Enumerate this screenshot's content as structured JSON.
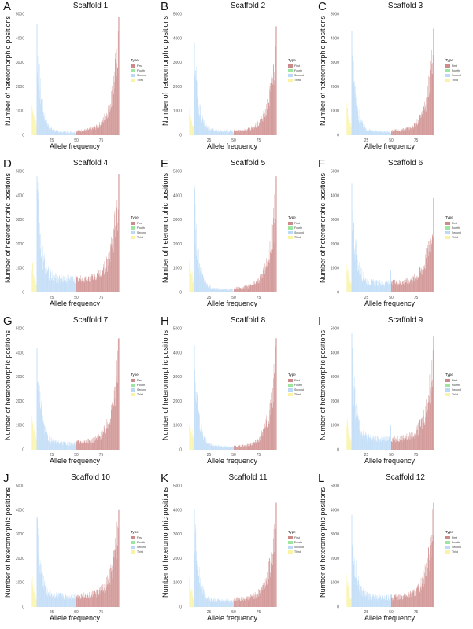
{
  "figure": {
    "ylabel": "Number of heteromorphic positions",
    "xlabel": "Allele frequency",
    "legend_title": "Type",
    "legend_items": [
      {
        "label": "First",
        "color": "#cd8a8a"
      },
      {
        "label": "Fourth",
        "color": "#9ce6a0"
      },
      {
        "label": "Second",
        "color": "#bcdaf7"
      },
      {
        "label": "Third",
        "color": "#f9f3a6"
      }
    ],
    "x_ticks": [
      25,
      50,
      75
    ],
    "y_ticks": [
      0,
      1000,
      2000,
      3000,
      4000,
      5000
    ]
  },
  "chart_data": [
    {
      "type": "bar",
      "panel": "A",
      "title": "Scaffold 1",
      "xlabel": "Allele frequency",
      "ylabel": "Number of heteromorphic positions",
      "ylim": [
        0,
        5000
      ],
      "xlim": [
        0,
        100
      ],
      "series": [
        {
          "name": "Third",
          "x_range": [
            5,
            10
          ],
          "values": [
            1200,
            900,
            700,
            550,
            450
          ]
        },
        {
          "name": "Second",
          "x_range": [
            10,
            50
          ],
          "peak": 4600,
          "mid_level": 150,
          "dip_at_50": 40
        },
        {
          "name": "First",
          "x_range": [
            50,
            93
          ],
          "mid_level": 200,
          "peak": 4900
        }
      ]
    },
    {
      "type": "bar",
      "panel": "B",
      "title": "Scaffold 2",
      "xlabel": "Allele frequency",
      "ylabel": "Number of heteromorphic positions",
      "ylim": [
        0,
        5000
      ],
      "xlim": [
        0,
        100
      ],
      "series": [
        {
          "name": "Third",
          "x_range": [
            5,
            10
          ],
          "values": [
            1000,
            700,
            500,
            350,
            300
          ]
        },
        {
          "name": "Second",
          "x_range": [
            10,
            50
          ],
          "peak": 3800,
          "mid_level": 200,
          "dip_at_50": 100
        },
        {
          "name": "First",
          "x_range": [
            50,
            93
          ],
          "mid_level": 200,
          "peak": 4500
        }
      ]
    },
    {
      "type": "bar",
      "panel": "C",
      "title": "Scaffold 3",
      "xlabel": "Allele frequency",
      "ylabel": "Number of heteromorphic positions",
      "ylim": [
        0,
        5000
      ],
      "xlim": [
        0,
        100
      ],
      "series": [
        {
          "name": "Third",
          "x_range": [
            5,
            10
          ],
          "values": [
            1100,
            800,
            600,
            400,
            300
          ]
        },
        {
          "name": "Second",
          "x_range": [
            10,
            50
          ],
          "peak": 4300,
          "mid_level": 180,
          "dip_at_50": 80
        },
        {
          "name": "First",
          "x_range": [
            50,
            93
          ],
          "mid_level": 200,
          "peak": 4400
        }
      ]
    },
    {
      "type": "bar",
      "panel": "D",
      "title": "Scaffold 4",
      "xlabel": "Allele frequency",
      "ylabel": "Number of heteromorphic positions",
      "ylim": [
        0,
        5000
      ],
      "xlim": [
        0,
        100
      ],
      "series": [
        {
          "name": "Third",
          "x_range": [
            5,
            10
          ],
          "values": [
            1100,
            800,
            600,
            400,
            300
          ]
        },
        {
          "name": "Second",
          "x_range": [
            10,
            50
          ],
          "peak": 4800,
          "mid_level": 650,
          "dip_at_50": 1700
        },
        {
          "name": "First",
          "x_range": [
            50,
            93
          ],
          "mid_level": 600,
          "peak": 4900
        }
      ]
    },
    {
      "type": "bar",
      "panel": "E",
      "title": "Scaffold 5",
      "xlabel": "Allele frequency",
      "ylabel": "Number of heteromorphic positions",
      "ylim": [
        0,
        5000
      ],
      "xlim": [
        0,
        100
      ],
      "series": [
        {
          "name": "Third",
          "x_range": [
            5,
            10
          ],
          "values": [
            1300,
            900,
            700,
            500,
            400
          ]
        },
        {
          "name": "Second",
          "x_range": [
            10,
            50
          ],
          "peak": 4400,
          "mid_level": 150,
          "dip_at_50": 50
        },
        {
          "name": "First",
          "x_range": [
            50,
            93
          ],
          "mid_level": 200,
          "peak": 4800
        }
      ]
    },
    {
      "type": "bar",
      "panel": "F",
      "title": "Scaffold 6",
      "xlabel": "Allele frequency",
      "ylabel": "Number of heteromorphic positions",
      "ylim": [
        0,
        5000
      ],
      "xlim": [
        0,
        100
      ],
      "series": [
        {
          "name": "Third",
          "x_range": [
            5,
            10
          ],
          "values": [
            1100,
            800,
            600,
            400,
            300
          ]
        },
        {
          "name": "Second",
          "x_range": [
            10,
            50
          ],
          "peak": 4500,
          "mid_level": 450,
          "dip_at_50": 900
        },
        {
          "name": "First",
          "x_range": [
            50,
            93
          ],
          "mid_level": 450,
          "peak": 3900
        }
      ]
    },
    {
      "type": "bar",
      "panel": "G",
      "title": "Scaffold 7",
      "xlabel": "Allele frequency",
      "ylabel": "Number of heteromorphic positions",
      "ylim": [
        0,
        5000
      ],
      "xlim": [
        0,
        100
      ],
      "series": [
        {
          "name": "Third",
          "x_range": [
            5,
            10
          ],
          "values": [
            1200,
            900,
            700,
            500,
            400
          ]
        },
        {
          "name": "Second",
          "x_range": [
            10,
            50
          ],
          "peak": 4200,
          "mid_level": 300,
          "dip_at_50": 500
        },
        {
          "name": "First",
          "x_range": [
            50,
            93
          ],
          "mid_level": 350,
          "peak": 4600
        }
      ]
    },
    {
      "type": "bar",
      "panel": "H",
      "title": "Scaffold 8",
      "xlabel": "Allele frequency",
      "ylabel": "Number of heteromorphic positions",
      "ylim": [
        0,
        5000
      ],
      "xlim": [
        0,
        100
      ],
      "series": [
        {
          "name": "Third",
          "x_range": [
            5,
            10
          ],
          "values": [
            1300,
            900,
            700,
            500,
            400
          ]
        },
        {
          "name": "Second",
          "x_range": [
            10,
            50
          ],
          "peak": 4300,
          "mid_level": 150,
          "dip_at_50": 100
        },
        {
          "name": "First",
          "x_range": [
            50,
            93
          ],
          "mid_level": 150,
          "peak": 4600
        }
      ]
    },
    {
      "type": "bar",
      "panel": "I",
      "title": "Scaffold 9",
      "xlabel": "Allele frequency",
      "ylabel": "Number of heteromorphic positions",
      "ylim": [
        0,
        5000
      ],
      "xlim": [
        0,
        100
      ],
      "series": [
        {
          "name": "Third",
          "x_range": [
            5,
            10
          ],
          "values": [
            1100,
            800,
            600,
            400,
            300
          ]
        },
        {
          "name": "Second",
          "x_range": [
            10,
            50
          ],
          "peak": 4800,
          "mid_level": 500,
          "dip_at_50": 1000
        },
        {
          "name": "First",
          "x_range": [
            50,
            93
          ],
          "mid_level": 500,
          "peak": 4700
        }
      ]
    },
    {
      "type": "bar",
      "panel": "J",
      "title": "Scaffold 10",
      "xlabel": "Allele frequency",
      "ylabel": "Number of heteromorphic positions",
      "ylim": [
        0,
        5000
      ],
      "xlim": [
        0,
        100
      ],
      "series": [
        {
          "name": "Third",
          "x_range": [
            5,
            10
          ],
          "values": [
            1100,
            800,
            600,
            400,
            300
          ]
        },
        {
          "name": "Second",
          "x_range": [
            10,
            50
          ],
          "peak": 3700,
          "mid_level": 500,
          "dip_at_50": 600
        },
        {
          "name": "First",
          "x_range": [
            50,
            93
          ],
          "mid_level": 500,
          "peak": 4000
        }
      ]
    },
    {
      "type": "bar",
      "panel": "K",
      "title": "Scaffold 11",
      "xlabel": "Allele frequency",
      "ylabel": "Number of heteromorphic positions",
      "ylim": [
        0,
        5000
      ],
      "xlim": [
        0,
        100
      ],
      "series": [
        {
          "name": "Third",
          "x_range": [
            5,
            10
          ],
          "values": [
            1100,
            800,
            600,
            400,
            300
          ]
        },
        {
          "name": "Second",
          "x_range": [
            10,
            50
          ],
          "peak": 4000,
          "mid_level": 300,
          "dip_at_50": 300
        },
        {
          "name": "First",
          "x_range": [
            50,
            93
          ],
          "mid_level": 350,
          "peak": 4300
        }
      ]
    },
    {
      "type": "bar",
      "panel": "L",
      "title": "Scaffold 12",
      "xlabel": "Allele frequency",
      "ylabel": "Number of heteromorphic positions",
      "ylim": [
        0,
        5000
      ],
      "xlim": [
        0,
        100
      ],
      "series": [
        {
          "name": "Third",
          "x_range": [
            5,
            10
          ],
          "values": [
            1100,
            800,
            600,
            400,
            300
          ]
        },
        {
          "name": "Second",
          "x_range": [
            10,
            50
          ],
          "peak": 3800,
          "mid_level": 450,
          "dip_at_50": 500
        },
        {
          "name": "First",
          "x_range": [
            50,
            93
          ],
          "mid_level": 450,
          "peak": 4300
        }
      ]
    }
  ]
}
